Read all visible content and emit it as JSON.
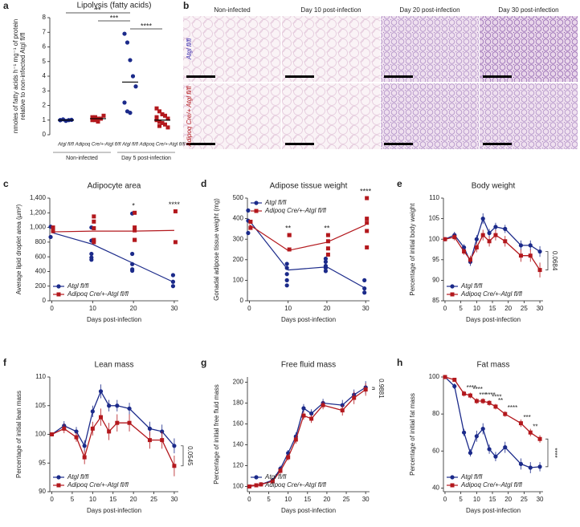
{
  "chart_data": [
    {
      "type": "strip",
      "panel": "a",
      "title": "Lipolysis (fatty acids)",
      "y_label": [
        "nmoles of fatty acids h⁻¹ mg⁻¹ of protein",
        "relative to non-infected Atgl fl/fl"
      ],
      "categories": [
        "Atgl fl/fl",
        "Adipoq Cre/+-Atgl fl/fl",
        "Atgl fl/fl",
        "Adipoq Cre/+-Atgl fl/fl"
      ],
      "colors": [
        "#1b2a8a",
        "#b3181d",
        "#1b2a8a",
        "#b3181d"
      ],
      "markers": [
        "circle",
        "square",
        "circle",
        "square"
      ],
      "points": [
        [
          1.0,
          1.05,
          0.95,
          1.0,
          1.02,
          1.0
        ],
        [
          1.2,
          1.0,
          0.9,
          1.1,
          1.3,
          1.0,
          1.2,
          1.1
        ],
        [
          6.9,
          6.3,
          5.1,
          4.0,
          3.3,
          2.2,
          1.6,
          1.5
        ],
        [
          1.8,
          1.6,
          1.4,
          1.3,
          1.1,
          1.0,
          0.9,
          0.8,
          0.7,
          0.5,
          1.2,
          0.6
        ]
      ],
      "means": [
        1.0,
        1.1,
        3.6,
        1.0
      ],
      "groups": [
        {
          "label": "Non-infected",
          "categories": [
            0,
            1
          ]
        },
        {
          "label": "Day 5 post-infection",
          "categories": [
            2,
            3
          ]
        }
      ],
      "significance": [
        {
          "label": "**",
          "categories": [
            0,
            2
          ]
        },
        {
          "label": "***",
          "categories": [
            1,
            2
          ]
        },
        {
          "label": "****",
          "categories": [
            2,
            3
          ]
        }
      ],
      "ylim": [
        0,
        8
      ],
      "yticks": [
        0,
        1,
        2,
        3,
        4,
        5,
        6,
        7,
        8
      ]
    },
    {
      "type": "scatter",
      "panel": "c",
      "title": "Adipocyte area",
      "x_label": "Days post-infection",
      "y_label": [
        "Average lipid droplet area (µm²)"
      ],
      "xlim": [
        -0.5,
        31
      ],
      "xticks": [
        0,
        10,
        20,
        30
      ],
      "ylim": [
        0,
        1400
      ],
      "yticks": [
        0,
        200,
        400,
        600,
        800,
        {
          "value": 1000,
          "label": "1,000"
        },
        {
          "value": 1200,
          "label": "1,200"
        },
        {
          "value": 1400,
          "label": "1,400"
        }
      ],
      "legend": "lower left",
      "series": [
        {
          "name": "Atgl fl/fl",
          "color": "#1b2a8a",
          "marker": "circle",
          "x": [
            0,
            10,
            20,
            30
          ],
          "values": [
            930,
            770,
            510,
            250
          ],
          "points_x": [
            0,
            0,
            10,
            10,
            10,
            10,
            10,
            20,
            20,
            20,
            20,
            20,
            30,
            30,
            30
          ],
          "points_y": [
            1010,
            870,
            1000,
            820,
            640,
            590,
            560,
            1190,
            640,
            500,
            430,
            410,
            350,
            260,
            200
          ]
        },
        {
          "name": "Adipoq Cre/+-Atgl fl/fl",
          "color": "#b3181d",
          "marker": "square",
          "x": [
            0,
            10,
            20,
            30
          ],
          "values": [
            940,
            950,
            950,
            960
          ],
          "points_x": [
            0,
            0,
            10,
            10,
            10,
            10,
            10,
            20,
            20,
            20,
            20,
            20,
            30,
            30
          ],
          "points_y": [
            1000,
            950,
            1150,
            1080,
            990,
            830,
            800,
            1200,
            1000,
            960,
            830,
            830,
            1220,
            800
          ]
        }
      ],
      "asterisks": [
        {
          "label": "*",
          "x": 20
        },
        {
          "label": "****",
          "x": 30
        }
      ]
    },
    {
      "type": "scatter",
      "panel": "d",
      "title": "Adipose tissue weight",
      "x_label": "Days post-infection",
      "y_label": [
        "Gonadal adipose tissue weight (mg)"
      ],
      "xlim": [
        -0.5,
        31
      ],
      "xticks": [
        0,
        10,
        20,
        30
      ],
      "ylim": [
        0,
        500
      ],
      "yticks": [
        0,
        100,
        200,
        300,
        400,
        500
      ],
      "legend": "upper left",
      "series": [
        {
          "name": "Atgl fl/fl",
          "color": "#1b2a8a",
          "marker": "circle",
          "x": [
            0,
            10,
            20,
            30
          ],
          "values": [
            390,
            150,
            165,
            60
          ],
          "points_x": [
            0,
            0,
            0,
            10,
            10,
            10,
            10,
            10,
            20,
            20,
            20,
            20,
            20,
            30,
            30,
            30
          ],
          "points_y": [
            440,
            390,
            330,
            180,
            160,
            130,
            100,
            75,
            205,
            190,
            170,
            160,
            145,
            100,
            60,
            40
          ]
        },
        {
          "name": "Adipoq Cre/+-Atgl fl/fl",
          "color": "#b3181d",
          "marker": "square",
          "x": [
            0,
            10,
            20,
            30
          ],
          "values": [
            370,
            245,
            285,
            370
          ],
          "points_x": [
            0,
            0,
            10,
            10,
            10,
            20,
            20,
            20,
            20,
            30,
            30,
            30,
            30,
            30
          ],
          "points_y": [
            385,
            355,
            320,
            320,
            250,
            320,
            290,
            255,
            225,
            500,
            400,
            380,
            340,
            260
          ]
        }
      ],
      "asterisks": [
        {
          "label": "**",
          "x": 10
        },
        {
          "label": "**",
          "x": 20
        },
        {
          "label": "****",
          "x": 30
        }
      ]
    },
    {
      "type": "line",
      "panel": "e",
      "title": "Body weight",
      "x_label": "Days post-infection",
      "y_label": [
        "Percentage of initial body weight"
      ],
      "x": [
        0,
        3,
        6,
        8,
        10,
        12,
        14,
        16,
        19,
        24,
        27,
        30
      ],
      "xlim": [
        -0.5,
        31
      ],
      "xticks": [
        0,
        5,
        10,
        15,
        20,
        25,
        30
      ],
      "ylim": [
        85,
        110
      ],
      "yticks": [
        85,
        90,
        95,
        100,
        105,
        110
      ],
      "legend": "lower left",
      "series": [
        {
          "name": "Atgl fl/fl",
          "color": "#1b2a8a",
          "marker": "circle",
          "values": [
            100,
            101,
            98,
            94.5,
            100,
            105,
            101.5,
            103,
            102.5,
            98.5,
            98.5,
            97
          ],
          "errors": [
            0.3,
            0.8,
            0.8,
            1,
            1,
            1.3,
            1,
            1,
            1,
            1.2,
            1.2,
            1.3
          ]
        },
        {
          "name": "Adipoq Cre/+-Atgl fl/fl",
          "color": "#b3181d",
          "marker": "square",
          "values": [
            100,
            100.5,
            97,
            95,
            98,
            101,
            99.5,
            101,
            99.5,
            96,
            96,
            92.5
          ],
          "errors": [
            0.3,
            0.8,
            0.8,
            1,
            1.2,
            1.3,
            1.3,
            1.3,
            1.3,
            1.5,
            1.5,
            1.8
          ]
        }
      ],
      "p_value": "0.0684"
    },
    {
      "type": "line",
      "panel": "f",
      "title": "Lean mass",
      "x_label": "Days post-infection",
      "y_label": [
        "Percentage of initial lean mass"
      ],
      "x": [
        0,
        3,
        6,
        8,
        10,
        12,
        14,
        16,
        19,
        24,
        27,
        30
      ],
      "xlim": [
        -0.5,
        31
      ],
      "xticks": [
        0,
        5,
        10,
        15,
        20,
        25,
        30
      ],
      "ylim": [
        90,
        110
      ],
      "yticks": [
        90,
        95,
        100,
        105,
        110
      ],
      "legend": "lower left",
      "series": [
        {
          "name": "Atgl fl/fl",
          "color": "#1b2a8a",
          "marker": "circle",
          "values": [
            100,
            101.5,
            100.5,
            98,
            104,
            107.5,
            105,
            105,
            104.5,
            101,
            100.5,
            98
          ],
          "errors": [
            0.3,
            0.8,
            0.8,
            1,
            1,
            1.2,
            1,
            1,
            1,
            1.2,
            1.2,
            1.3
          ]
        },
        {
          "name": "Adipoq Cre/+-Atgl fl/fl",
          "color": "#b3181d",
          "marker": "square",
          "values": [
            100,
            101,
            99.5,
            96,
            101,
            103,
            100.5,
            102,
            102,
            99,
            99,
            94.5
          ],
          "errors": [
            0.3,
            0.8,
            0.8,
            1.2,
            1.2,
            1.5,
            1.5,
            1.5,
            1.5,
            1.5,
            1.5,
            1.8
          ]
        }
      ],
      "p_value": "0.0545"
    },
    {
      "type": "line",
      "panel": "g",
      "title": "Free fluid mass",
      "x_label": "Days post-infection",
      "y_label": [
        "Percentage of initial free fluid mass"
      ],
      "x": [
        0,
        3,
        6,
        8,
        10,
        12,
        14,
        16,
        19,
        24,
        27,
        30
      ],
      "xlim": [
        -0.5,
        31
      ],
      "xticks": [
        0,
        5,
        10,
        15,
        20,
        25,
        30
      ],
      "ylim": [
        95,
        205
      ],
      "yticks": [
        100,
        120,
        140,
        160,
        180,
        200
      ],
      "legend": "lower left",
      "series": [
        {
          "name": "Atgl fl/fl",
          "color": "#1b2a8a",
          "marker": "circle",
          "values": [
            100,
            102,
            106,
            117,
            132,
            148,
            175,
            170,
            180,
            178,
            188,
            195
          ],
          "errors": [
            1,
            2,
            2,
            3,
            3,
            4,
            4,
            4,
            4,
            5,
            5,
            6
          ]
        },
        {
          "name": "Adipoq Cre/+-Atgl fl/fl",
          "color": "#b3181d",
          "marker": "square",
          "values": [
            100,
            102,
            105,
            115,
            128,
            145,
            168,
            165,
            178,
            173,
            185,
            193
          ],
          "errors": [
            1,
            2,
            2,
            3,
            3,
            4,
            4,
            4,
            4,
            5,
            6,
            6
          ]
        }
      ],
      "p_value": "0.9881"
    },
    {
      "type": "line",
      "panel": "h",
      "title": "Fat mass",
      "x_label": "Days post-infection",
      "y_label": [
        "Percentage of initial fat mass"
      ],
      "x": [
        0,
        3,
        6,
        8,
        10,
        12,
        14,
        16,
        19,
        24,
        27,
        30
      ],
      "xlim": [
        -0.5,
        31
      ],
      "xticks": [
        0,
        5,
        10,
        15,
        20,
        25,
        30
      ],
      "ylim": [
        38,
        100
      ],
      "yticks": [
        40,
        60,
        80,
        100
      ],
      "legend": "lower left",
      "series": [
        {
          "name": "Atgl fl/fl",
          "color": "#1b2a8a",
          "marker": "circle",
          "values": [
            100,
            95,
            70,
            59,
            68,
            72,
            61,
            57,
            62,
            53,
            51,
            51.5
          ],
          "errors": [
            0.3,
            1.5,
            2,
            2,
            3,
            3,
            2.5,
            2.5,
            3,
            3,
            3,
            2.5
          ]
        },
        {
          "name": "Adipoq Cre/+-Atgl fl/fl",
          "color": "#b3181d",
          "marker": "square",
          "values": [
            100,
            98.5,
            91,
            90,
            87,
            87,
            86,
            84,
            80,
            75,
            70,
            66.5
          ],
          "errors": [
            0.3,
            1,
            1.5,
            1.5,
            1.5,
            1.5,
            1.5,
            1.5,
            1.5,
            2,
            2,
            2
          ]
        }
      ],
      "asterisks": [
        {
          "label": "****",
          "x": 6
        },
        {
          "label": "****",
          "x": 8
        },
        {
          "label": "***",
          "x": 10
        },
        {
          "label": "****",
          "x": 12
        },
        {
          "label": "****",
          "x": 14
        },
        {
          "label": "**",
          "x": 16
        },
        {
          "label": "****",
          "x": 19
        },
        {
          "label": "***",
          "x": 24
        },
        {
          "label": "**",
          "x": 27
        }
      ],
      "p_value": "****"
    }
  ],
  "histology": {
    "panel": "b",
    "columns": [
      "Non-infected",
      "Day 10 post-infection",
      "Day 20 post-infection",
      "Day 30 post-infection"
    ],
    "rows": [
      "Atgl fl/fl",
      "Adipoq Cre/+ Atgl fl/fl"
    ]
  }
}
